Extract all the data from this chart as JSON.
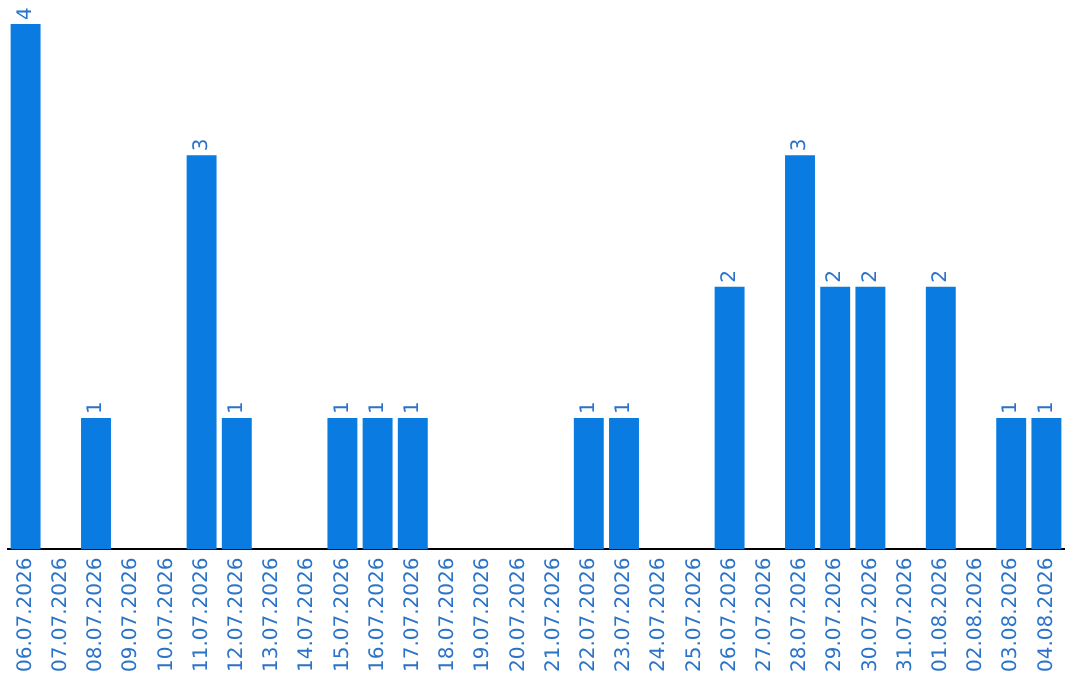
{
  "chart_data": {
    "type": "bar",
    "categories": [
      "06.07.2026",
      "07.07.2026",
      "08.07.2026",
      "09.07.2026",
      "10.07.2026",
      "11.07.2026",
      "12.07.2026",
      "13.07.2026",
      "14.07.2026",
      "15.07.2026",
      "16.07.2026",
      "17.07.2026",
      "18.07.2026",
      "19.07.2026",
      "20.07.2026",
      "21.07.2026",
      "22.07.2026",
      "23.07.2026",
      "24.07.2026",
      "25.07.2026",
      "26.07.2026",
      "27.07.2026",
      "28.07.2026",
      "29.07.2026",
      "30.07.2026",
      "31.07.2026",
      "01.08.2026",
      "02.08.2026",
      "03.08.2026",
      "04.08.2026"
    ],
    "values": [
      4,
      0,
      1,
      0,
      0,
      3,
      1,
      0,
      0,
      1,
      1,
      1,
      0,
      0,
      0,
      0,
      1,
      1,
      0,
      0,
      2,
      0,
      3,
      2,
      2,
      0,
      2,
      0,
      1,
      1
    ],
    "value_labels": [
      "4",
      null,
      "1",
      null,
      null,
      "3",
      "1",
      null,
      null,
      "1",
      "1",
      "1",
      null,
      null,
      null,
      null,
      "1",
      "1",
      null,
      null,
      "2",
      null,
      "3",
      "2",
      "2",
      null,
      "2",
      null,
      "1",
      "1"
    ],
    "color": "#0a7be0",
    "tick_labels": "x",
    "grid": false,
    "legend": false
  }
}
